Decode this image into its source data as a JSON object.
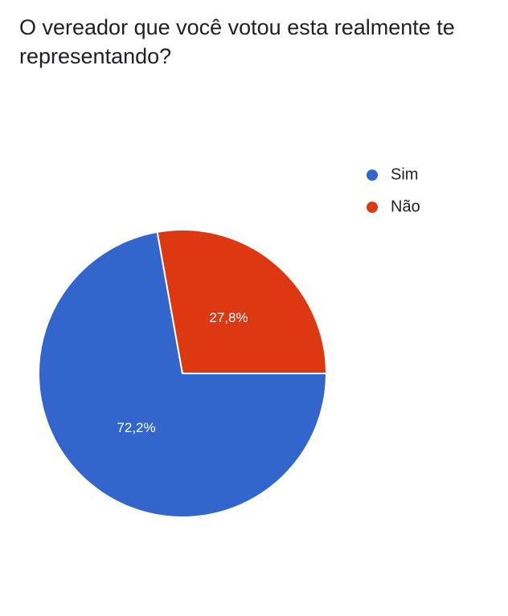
{
  "chart_data": {
    "type": "pie",
    "title": "O vereador que você votou esta realmente te representando?",
    "categories": [
      "Sim",
      "Não"
    ],
    "values": [
      72.2,
      27.8
    ],
    "value_labels": [
      "72,2%",
      "27,8%"
    ],
    "colors": [
      "#3366cc",
      "#dc3912"
    ]
  }
}
